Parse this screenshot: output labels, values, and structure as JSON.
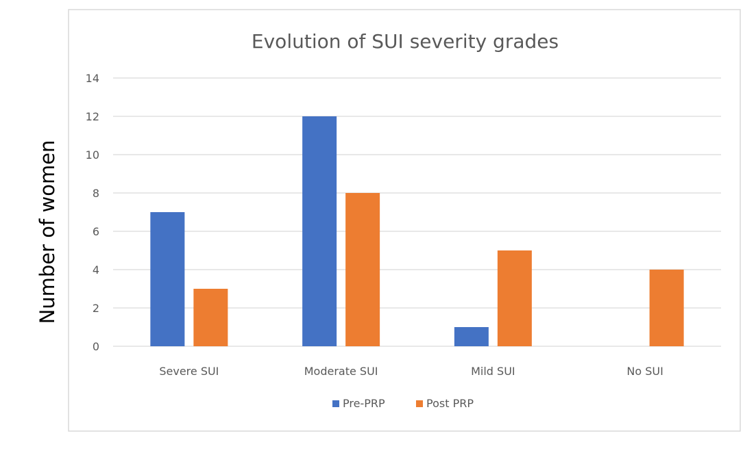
{
  "chart_data": {
    "type": "bar",
    "title": "Evolution of SUI severity grades",
    "xlabel": "",
    "ylabel": "Number of women",
    "categories": [
      "Severe SUI",
      "Moderate SUI",
      "Mild SUI",
      "No SUI"
    ],
    "series": [
      {
        "name": "Pre-PRP",
        "values": [
          7,
          12,
          1,
          0
        ],
        "color": "#4472C4"
      },
      {
        "name": "Post PRP",
        "values": [
          3,
          8,
          5,
          4
        ],
        "color": "#ED7D31"
      }
    ],
    "ylim": [
      0,
      14
    ],
    "yticks": [
      0,
      2,
      4,
      6,
      8,
      10,
      12,
      14
    ],
    "grid": true,
    "legend_position": "bottom"
  }
}
